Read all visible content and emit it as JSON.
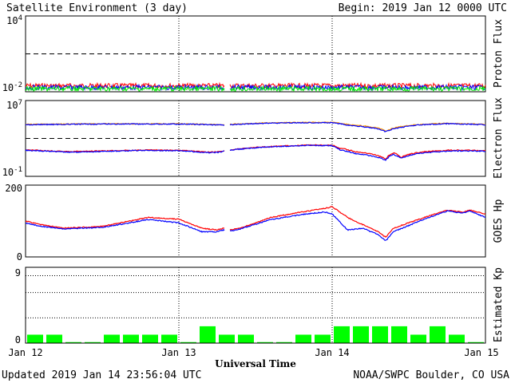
{
  "header": {
    "title": "Satellite Environment (3 day)",
    "begin": "Begin:  2019 Jan 12 0000 UTC"
  },
  "footer": {
    "updated": "Updated 2019 Jan 14 23:56:04 UTC",
    "credit": "NOAA/SWPC Boulder, CO USA",
    "xlabel": "Universal Time"
  },
  "x_ticks": [
    "Jan 12",
    "Jan 13",
    "Jan 14",
    "Jan 15"
  ],
  "colors": {
    "red": "#ff0000",
    "blue": "#0000ff",
    "green": "#00ee00",
    "orange": "#ff9900",
    "kp_bar": "#00ff00"
  },
  "chart_data": [
    {
      "type": "line",
      "name": "proton-flux",
      "ylabel": "Proton Flux",
      "y_scale": "log",
      "y_ticks": [
        "10^4",
        "10^-2"
      ],
      "ylim": [
        0.01,
        10000
      ],
      "threshold": 10,
      "x_range_days": [
        0,
        3
      ],
      "data_gap_days": [
        1.3,
        1.33
      ],
      "series": [
        {
          "color": "red",
          "level": 0.03
        },
        {
          "color": "blue",
          "level": 0.022
        },
        {
          "color": "green",
          "level": 0.017
        }
      ]
    },
    {
      "type": "line",
      "name": "electron-flux",
      "ylabel": "Electron Flux",
      "y_scale": "log",
      "y_ticks": [
        "10^7",
        "10^-1"
      ],
      "ylim": [
        0.1,
        10000000
      ],
      "threshold": 1000,
      "x_range_days": [
        0,
        3
      ],
      "data_gap_days": [
        1.3,
        1.33
      ],
      "series": [
        {
          "color": "orange",
          "x": [
            0,
            0.5,
            1.0,
            1.2,
            1.27,
            1.33,
            1.6,
            1.85,
            2.0,
            2.1,
            2.3,
            2.35,
            2.45,
            2.55,
            2.75,
            3.0
          ],
          "y": [
            30000,
            35000,
            35000,
            30000,
            28000,
            30000,
            45000,
            50000,
            50000,
            30000,
            12000,
            6000,
            18000,
            28000,
            40000,
            30000
          ]
        },
        {
          "color": "blue",
          "x": [
            0,
            0.5,
            1.0,
            1.2,
            1.27,
            1.33,
            1.6,
            1.85,
            2.0,
            2.1,
            2.3,
            2.35,
            2.45,
            2.55,
            2.75,
            3.0
          ],
          "y": [
            28000,
            33000,
            33000,
            28000,
            26000,
            28000,
            42000,
            47000,
            45000,
            25000,
            10000,
            5000,
            15000,
            25000,
            36000,
            28000
          ]
        },
        {
          "color": "red",
          "x": [
            0,
            0.3,
            0.8,
            1.0,
            1.2,
            1.27,
            1.33,
            1.6,
            1.85,
            2.0,
            2.05,
            2.15,
            2.3,
            2.35,
            2.4,
            2.45,
            2.6,
            2.8,
            3.0
          ],
          "y": [
            60,
            40,
            60,
            55,
            35,
            40,
            60,
            140,
            200,
            190,
            90,
            40,
            15,
            6,
            30,
            10,
            40,
            60,
            50
          ]
        },
        {
          "color": "blue",
          "x": [
            0,
            0.3,
            0.8,
            1.0,
            1.2,
            1.27,
            1.33,
            1.6,
            1.85,
            2.0,
            2.05,
            2.15,
            2.3,
            2.35,
            2.4,
            2.45,
            2.6,
            2.8,
            3.0
          ],
          "y": [
            55,
            35,
            55,
            50,
            30,
            35,
            55,
            130,
            185,
            170,
            60,
            25,
            10,
            5,
            20,
            8,
            30,
            50,
            45
          ]
        }
      ]
    },
    {
      "type": "line",
      "name": "goes-hp",
      "ylabel": "GOES Hp",
      "y_scale": "linear",
      "y_ticks": [
        "200",
        "0"
      ],
      "ylim": [
        0,
        200
      ],
      "x_range_days": [
        0,
        3
      ],
      "data_gap_days": [
        1.3,
        1.33
      ],
      "series": [
        {
          "color": "red",
          "x": [
            0,
            0.1,
            0.25,
            0.5,
            0.8,
            1.0,
            1.15,
            1.25,
            1.29,
            1.33,
            1.4,
            1.6,
            1.8,
            1.95,
            2.0,
            2.1,
            2.2,
            2.3,
            2.35,
            2.4,
            2.6,
            2.75,
            2.85,
            2.9,
            3.0
          ],
          "y": [
            100,
            90,
            80,
            85,
            110,
            105,
            80,
            75,
            80,
            75,
            80,
            110,
            125,
            135,
            140,
            110,
            90,
            70,
            55,
            80,
            110,
            130,
            125,
            130,
            120
          ]
        },
        {
          "color": "blue",
          "x": [
            0,
            0.1,
            0.25,
            0.5,
            0.8,
            1.0,
            1.15,
            1.25,
            1.29,
            1.33,
            1.4,
            1.6,
            1.8,
            1.95,
            2.0,
            2.1,
            2.2,
            2.3,
            2.35,
            2.4,
            2.6,
            2.75,
            2.85,
            2.9,
            3.0
          ],
          "y": [
            95,
            85,
            78,
            82,
            104,
            95,
            70,
            70,
            75,
            72,
            78,
            104,
            118,
            125,
            120,
            75,
            80,
            62,
            45,
            70,
            105,
            128,
            122,
            128,
            110
          ]
        }
      ]
    },
    {
      "type": "bar",
      "name": "estimated-kp",
      "ylabel": "Estimated Kp",
      "y_ticks": [
        "9",
        "0"
      ],
      "ylim": [
        0,
        9
      ],
      "bar_width_hours": 3,
      "values": [
        1,
        1,
        0,
        0,
        1,
        1,
        1,
        1,
        0,
        2,
        1,
        1,
        0,
        0,
        1,
        1,
        2,
        2,
        2,
        2,
        1,
        2,
        1,
        0
      ]
    }
  ]
}
